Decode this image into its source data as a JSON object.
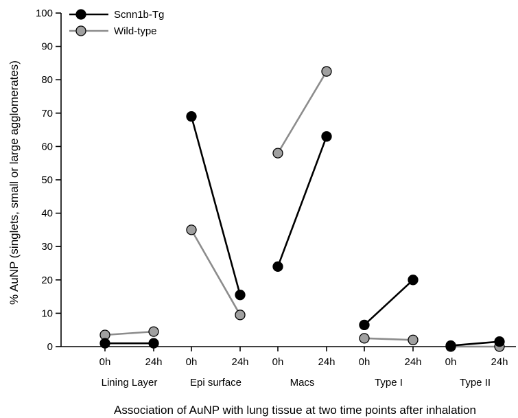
{
  "chart_data": {
    "type": "line",
    "groups": [
      "Lining Layer",
      "Epi surface",
      "Macs",
      "Type I",
      "Type II"
    ],
    "time_points": [
      "0h",
      "24h"
    ],
    "ylabel": "% AuNP (singlets, small or large agglomerates)",
    "xlabel": "Association of AuNP with lung tissue at two time points after inhalation",
    "ylim": [
      0,
      100
    ],
    "yticks": [
      0,
      10,
      20,
      30,
      40,
      50,
      60,
      70,
      80,
      90,
      100
    ],
    "legend_position": "top-left",
    "grid": false,
    "series": [
      {
        "name": "Scnn1b-Tg",
        "color": "#000000",
        "marker_fill": "#000000",
        "values": [
          [
            1,
            1
          ],
          [
            69,
            15.5
          ],
          [
            24,
            63
          ],
          [
            6.5,
            20
          ],
          [
            0.3,
            1.5
          ]
        ]
      },
      {
        "name": "Wild-type",
        "color": "#8c8c8c",
        "marker_fill": "#a0a0a0",
        "values": [
          [
            3.5,
            4.5
          ],
          [
            35,
            9.5
          ],
          [
            58,
            82.5
          ],
          [
            2.5,
            2
          ],
          [
            0,
            0
          ]
        ]
      }
    ]
  }
}
